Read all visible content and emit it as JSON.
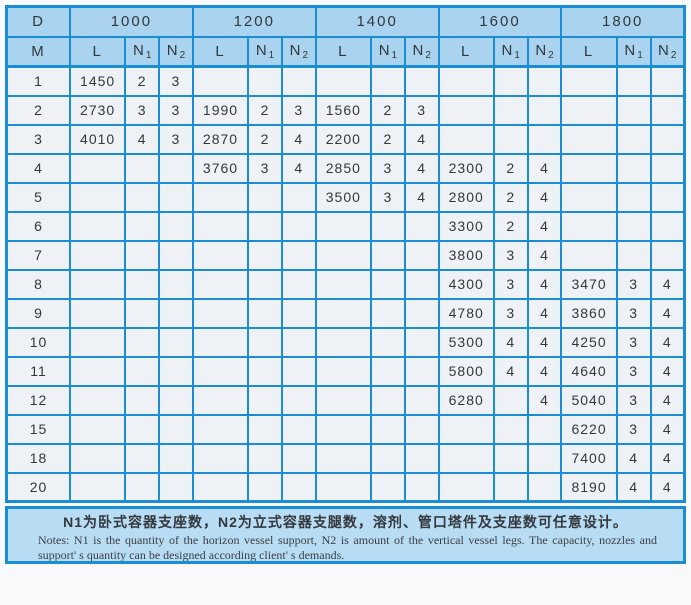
{
  "table": {
    "header": {
      "d": "D",
      "m": "M",
      "l": "L",
      "n": "N",
      "n1_sub": "1",
      "n2_sub": "2",
      "diameters": [
        "1000",
        "1200",
        "1400",
        "1600",
        "1800"
      ]
    },
    "rows": [
      {
        "m": "1",
        "cells": [
          [
            "1450",
            "2",
            "3"
          ],
          [
            "",
            "",
            ""
          ],
          [
            "",
            "",
            ""
          ],
          [
            "",
            "",
            ""
          ],
          [
            "",
            "",
            ""
          ]
        ]
      },
      {
        "m": "2",
        "cells": [
          [
            "2730",
            "3",
            "3"
          ],
          [
            "1990",
            "2",
            "3"
          ],
          [
            "1560",
            "2",
            "3"
          ],
          [
            "",
            "",
            ""
          ],
          [
            "",
            "",
            ""
          ]
        ]
      },
      {
        "m": "3",
        "cells": [
          [
            "4010",
            "4",
            "3"
          ],
          [
            "2870",
            "2",
            "4"
          ],
          [
            "2200",
            "2",
            "4"
          ],
          [
            "",
            "",
            ""
          ],
          [
            "",
            "",
            ""
          ]
        ]
      },
      {
        "m": "4",
        "cells": [
          [
            "",
            "",
            ""
          ],
          [
            "3760",
            "3",
            "4"
          ],
          [
            "2850",
            "3",
            "4"
          ],
          [
            "2300",
            "2",
            "4"
          ],
          [
            "",
            "",
            ""
          ]
        ]
      },
      {
        "m": "5",
        "cells": [
          [
            "",
            "",
            ""
          ],
          [
            "",
            "",
            ""
          ],
          [
            "3500",
            "3",
            "4"
          ],
          [
            "2800",
            "2",
            "4"
          ],
          [
            "",
            "",
            ""
          ]
        ]
      },
      {
        "m": "6",
        "cells": [
          [
            "",
            "",
            ""
          ],
          [
            "",
            "",
            ""
          ],
          [
            "",
            "",
            ""
          ],
          [
            "3300",
            "2",
            "4"
          ],
          [
            "",
            "",
            ""
          ]
        ]
      },
      {
        "m": "7",
        "cells": [
          [
            "",
            "",
            ""
          ],
          [
            "",
            "",
            ""
          ],
          [
            "",
            "",
            ""
          ],
          [
            "3800",
            "3",
            "4"
          ],
          [
            "",
            "",
            ""
          ]
        ]
      },
      {
        "m": "8",
        "cells": [
          [
            "",
            "",
            ""
          ],
          [
            "",
            "",
            ""
          ],
          [
            "",
            "",
            ""
          ],
          [
            "4300",
            "3",
            "4"
          ],
          [
            "3470",
            "3",
            "4"
          ]
        ]
      },
      {
        "m": "9",
        "cells": [
          [
            "",
            "",
            ""
          ],
          [
            "",
            "",
            ""
          ],
          [
            "",
            "",
            ""
          ],
          [
            "4780",
            "3",
            "4"
          ],
          [
            "3860",
            "3",
            "4"
          ]
        ]
      },
      {
        "m": "10",
        "cells": [
          [
            "",
            "",
            ""
          ],
          [
            "",
            "",
            ""
          ],
          [
            "",
            "",
            ""
          ],
          [
            "5300",
            "4",
            "4"
          ],
          [
            "4250",
            "3",
            "4"
          ]
        ]
      },
      {
        "m": "11",
        "cells": [
          [
            "",
            "",
            ""
          ],
          [
            "",
            "",
            ""
          ],
          [
            "",
            "",
            ""
          ],
          [
            "5800",
            "4",
            "4"
          ],
          [
            "4640",
            "3",
            "4"
          ]
        ]
      },
      {
        "m": "12",
        "cells": [
          [
            "",
            "",
            ""
          ],
          [
            "",
            "",
            ""
          ],
          [
            "",
            "",
            ""
          ],
          [
            "6280",
            "",
            "4"
          ],
          [
            "5040",
            "3",
            "4"
          ]
        ]
      },
      {
        "m": "15",
        "cells": [
          [
            "",
            "",
            ""
          ],
          [
            "",
            "",
            ""
          ],
          [
            "",
            "",
            ""
          ],
          [
            "",
            "",
            ""
          ],
          [
            "6220",
            "3",
            "4"
          ]
        ]
      },
      {
        "m": "18",
        "cells": [
          [
            "",
            "",
            ""
          ],
          [
            "",
            "",
            ""
          ],
          [
            "",
            "",
            ""
          ],
          [
            "",
            "",
            ""
          ],
          [
            "7400",
            "4",
            "4"
          ]
        ]
      },
      {
        "m": "20",
        "cells": [
          [
            "",
            "",
            ""
          ],
          [
            "",
            "",
            ""
          ],
          [
            "",
            "",
            ""
          ],
          [
            "",
            "",
            ""
          ],
          [
            "8190",
            "4",
            "4"
          ]
        ]
      }
    ]
  },
  "notes": {
    "zh": "N1为卧式容器支座数，N2为立式容器支腿数，溶剂、管口塔件及支座数可任意设计。",
    "en": "Notes: N1 is the quantity of the horizon vessel support, N2 is amount of the vertical vessel legs. The capacity, nozzles and support' s quantity can be designed according client' s demands."
  },
  "colors": {
    "border_blue": "#1a8dd4",
    "header_blue": "#a9d3ef",
    "cell_bg": "#eef2f7",
    "notes_bg": "#b7dcf3"
  }
}
